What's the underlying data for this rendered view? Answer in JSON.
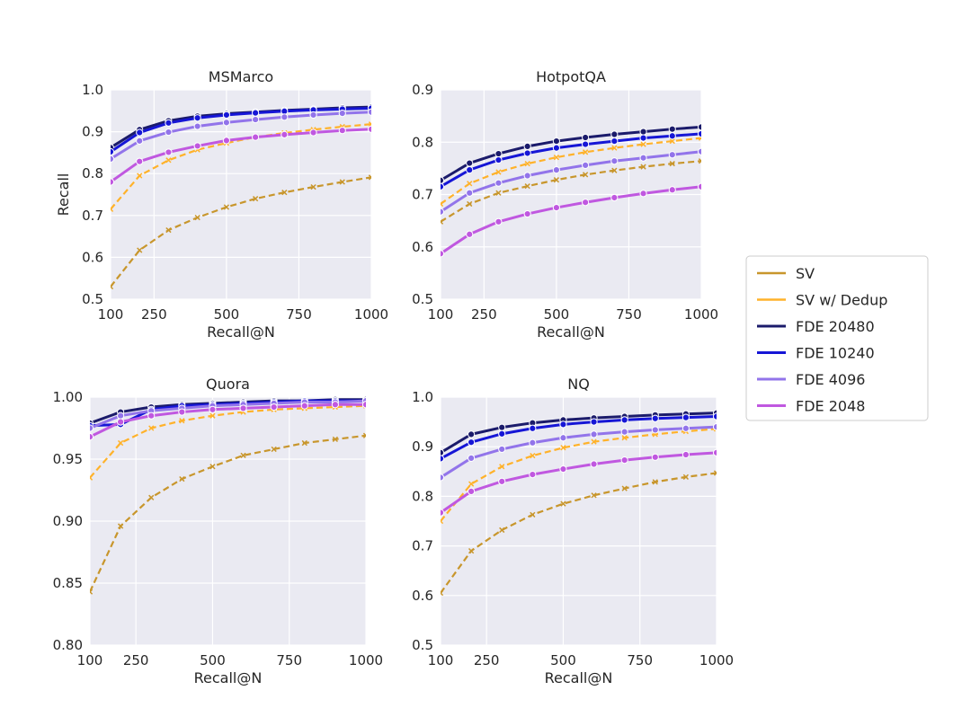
{
  "legend": {
    "placement": "right",
    "entries": [
      {
        "name": "SV",
        "color": "#c8962c",
        "dashed": true,
        "marker": "x"
      },
      {
        "name": "SV w/ Dedup",
        "color": "#ffb22a",
        "dashed": true,
        "marker": "x"
      },
      {
        "name": "FDE 20480",
        "color": "#1b1b6b",
        "dashed": false,
        "marker": "o"
      },
      {
        "name": "FDE 10240",
        "color": "#1616d6",
        "dashed": false,
        "marker": "o"
      },
      {
        "name": "FDE 4096",
        "color": "#9274ea",
        "dashed": false,
        "marker": "o"
      },
      {
        "name": "FDE 2048",
        "color": "#c058e0",
        "dashed": false,
        "marker": "o"
      }
    ]
  },
  "chart_data": [
    {
      "type": "line",
      "title": "MSMarco",
      "xlabel": "Recall@N",
      "ylabel": "Recall",
      "xlim": [
        100,
        1000
      ],
      "ylim": [
        0.5,
        1.0
      ],
      "grid": true,
      "xticks": [
        100,
        250,
        500,
        750,
        1000
      ],
      "yticks": [
        "0.5",
        "0.6",
        "0.7",
        "0.8",
        "0.9",
        "1.0"
      ],
      "x": [
        100,
        200,
        300,
        400,
        500,
        600,
        700,
        800,
        900,
        1000
      ],
      "series": [
        {
          "name": "SV",
          "values": [
            0.53,
            0.617,
            0.665,
            0.695,
            0.72,
            0.74,
            0.755,
            0.768,
            0.78,
            0.791
          ]
        },
        {
          "name": "SV w/ Dedup",
          "values": [
            0.715,
            0.795,
            0.832,
            0.857,
            0.873,
            0.887,
            0.897,
            0.905,
            0.912,
            0.918
          ]
        },
        {
          "name": "FDE 20480",
          "values": [
            0.862,
            0.905,
            0.926,
            0.937,
            0.943,
            0.947,
            0.951,
            0.954,
            0.957,
            0.959
          ]
        },
        {
          "name": "FDE 10240",
          "values": [
            0.852,
            0.898,
            0.921,
            0.933,
            0.94,
            0.945,
            0.949,
            0.952,
            0.954,
            0.956
          ]
        },
        {
          "name": "FDE 4096",
          "values": [
            0.835,
            0.878,
            0.899,
            0.913,
            0.922,
            0.929,
            0.935,
            0.94,
            0.944,
            0.947
          ]
        },
        {
          "name": "FDE 2048",
          "values": [
            0.78,
            0.829,
            0.851,
            0.866,
            0.879,
            0.887,
            0.893,
            0.898,
            0.903,
            0.906
          ]
        }
      ]
    },
    {
      "type": "line",
      "title": "HotpotQA",
      "xlabel": "Recall@N",
      "ylabel": "",
      "xlim": [
        100,
        1000
      ],
      "ylim": [
        0.5,
        0.9
      ],
      "grid": true,
      "xticks": [
        100,
        250,
        500,
        750,
        1000
      ],
      "yticks": [
        "0.5",
        "0.6",
        "0.7",
        "0.8",
        "0.9"
      ],
      "x": [
        100,
        200,
        300,
        400,
        500,
        600,
        700,
        800,
        900,
        1000
      ],
      "series": [
        {
          "name": "SV",
          "values": [
            0.648,
            0.682,
            0.703,
            0.716,
            0.728,
            0.738,
            0.746,
            0.753,
            0.759,
            0.764
          ]
        },
        {
          "name": "SV w/ Dedup",
          "values": [
            0.682,
            0.721,
            0.743,
            0.759,
            0.771,
            0.781,
            0.789,
            0.796,
            0.802,
            0.808
          ]
        },
        {
          "name": "FDE 20480",
          "values": [
            0.727,
            0.76,
            0.778,
            0.792,
            0.802,
            0.809,
            0.815,
            0.82,
            0.825,
            0.829
          ]
        },
        {
          "name": "FDE 10240",
          "values": [
            0.715,
            0.747,
            0.766,
            0.779,
            0.789,
            0.796,
            0.802,
            0.808,
            0.812,
            0.816
          ]
        },
        {
          "name": "FDE 4096",
          "values": [
            0.667,
            0.703,
            0.722,
            0.736,
            0.747,
            0.756,
            0.764,
            0.77,
            0.776,
            0.782
          ]
        },
        {
          "name": "FDE 2048",
          "values": [
            0.587,
            0.624,
            0.648,
            0.663,
            0.675,
            0.685,
            0.694,
            0.702,
            0.709,
            0.715
          ]
        }
      ]
    },
    {
      "type": "line",
      "title": "Quora",
      "xlabel": "Recall@N",
      "ylabel": "",
      "xlim": [
        100,
        1000
      ],
      "ylim": [
        0.8,
        1.0
      ],
      "grid": true,
      "xticks": [
        100,
        250,
        500,
        750,
        1000
      ],
      "yticks": [
        "0.80",
        "0.85",
        "0.90",
        "0.95",
        "1.00"
      ],
      "x": [
        100,
        200,
        300,
        400,
        500,
        600,
        700,
        800,
        900,
        1000
      ],
      "series": [
        {
          "name": "SV",
          "values": [
            0.843,
            0.896,
            0.919,
            0.934,
            0.944,
            0.953,
            0.958,
            0.963,
            0.966,
            0.969
          ]
        },
        {
          "name": "SV w/ Dedup",
          "values": [
            0.935,
            0.963,
            0.975,
            0.981,
            0.985,
            0.988,
            0.99,
            0.991,
            0.992,
            0.993
          ]
        },
        {
          "name": "FDE 20480",
          "values": [
            0.979,
            0.988,
            0.992,
            0.994,
            0.995,
            0.996,
            0.997,
            0.997,
            0.998,
            0.998
          ]
        },
        {
          "name": "FDE 10240",
          "values": [
            0.977,
            0.978,
            0.99,
            0.993,
            0.994,
            0.995,
            0.996,
            0.997,
            0.997,
            0.997
          ]
        },
        {
          "name": "FDE 4096",
          "values": [
            0.975,
            0.985,
            0.989,
            0.991,
            0.993,
            0.994,
            0.995,
            0.996,
            0.996,
            0.997
          ]
        },
        {
          "name": "FDE 2048",
          "values": [
            0.968,
            0.98,
            0.985,
            0.988,
            0.99,
            0.991,
            0.992,
            0.993,
            0.994,
            0.994
          ]
        }
      ]
    },
    {
      "type": "line",
      "title": "NQ",
      "xlabel": "Recall@N",
      "ylabel": "",
      "xlim": [
        100,
        1000
      ],
      "ylim": [
        0.5,
        1.0
      ],
      "grid": true,
      "xticks": [
        100,
        250,
        500,
        750,
        1000
      ],
      "yticks": [
        "0.5",
        "0.6",
        "0.7",
        "0.8",
        "0.9",
        "1.0"
      ],
      "x": [
        100,
        200,
        300,
        400,
        500,
        600,
        700,
        800,
        900,
        1000
      ],
      "series": [
        {
          "name": "SV",
          "values": [
            0.605,
            0.69,
            0.732,
            0.763,
            0.785,
            0.802,
            0.816,
            0.829,
            0.839,
            0.847
          ]
        },
        {
          "name": "SV w/ Dedup",
          "values": [
            0.75,
            0.825,
            0.86,
            0.882,
            0.898,
            0.91,
            0.918,
            0.925,
            0.931,
            0.936
          ]
        },
        {
          "name": "FDE 20480",
          "values": [
            0.888,
            0.925,
            0.939,
            0.948,
            0.954,
            0.958,
            0.961,
            0.964,
            0.966,
            0.968
          ]
        },
        {
          "name": "FDE 10240",
          "values": [
            0.876,
            0.909,
            0.926,
            0.937,
            0.945,
            0.95,
            0.954,
            0.957,
            0.959,
            0.961
          ]
        },
        {
          "name": "FDE 4096",
          "values": [
            0.838,
            0.877,
            0.895,
            0.908,
            0.918,
            0.925,
            0.93,
            0.934,
            0.937,
            0.94
          ]
        },
        {
          "name": "FDE 2048",
          "values": [
            0.767,
            0.81,
            0.83,
            0.844,
            0.855,
            0.865,
            0.873,
            0.879,
            0.884,
            0.888
          ]
        }
      ]
    }
  ]
}
